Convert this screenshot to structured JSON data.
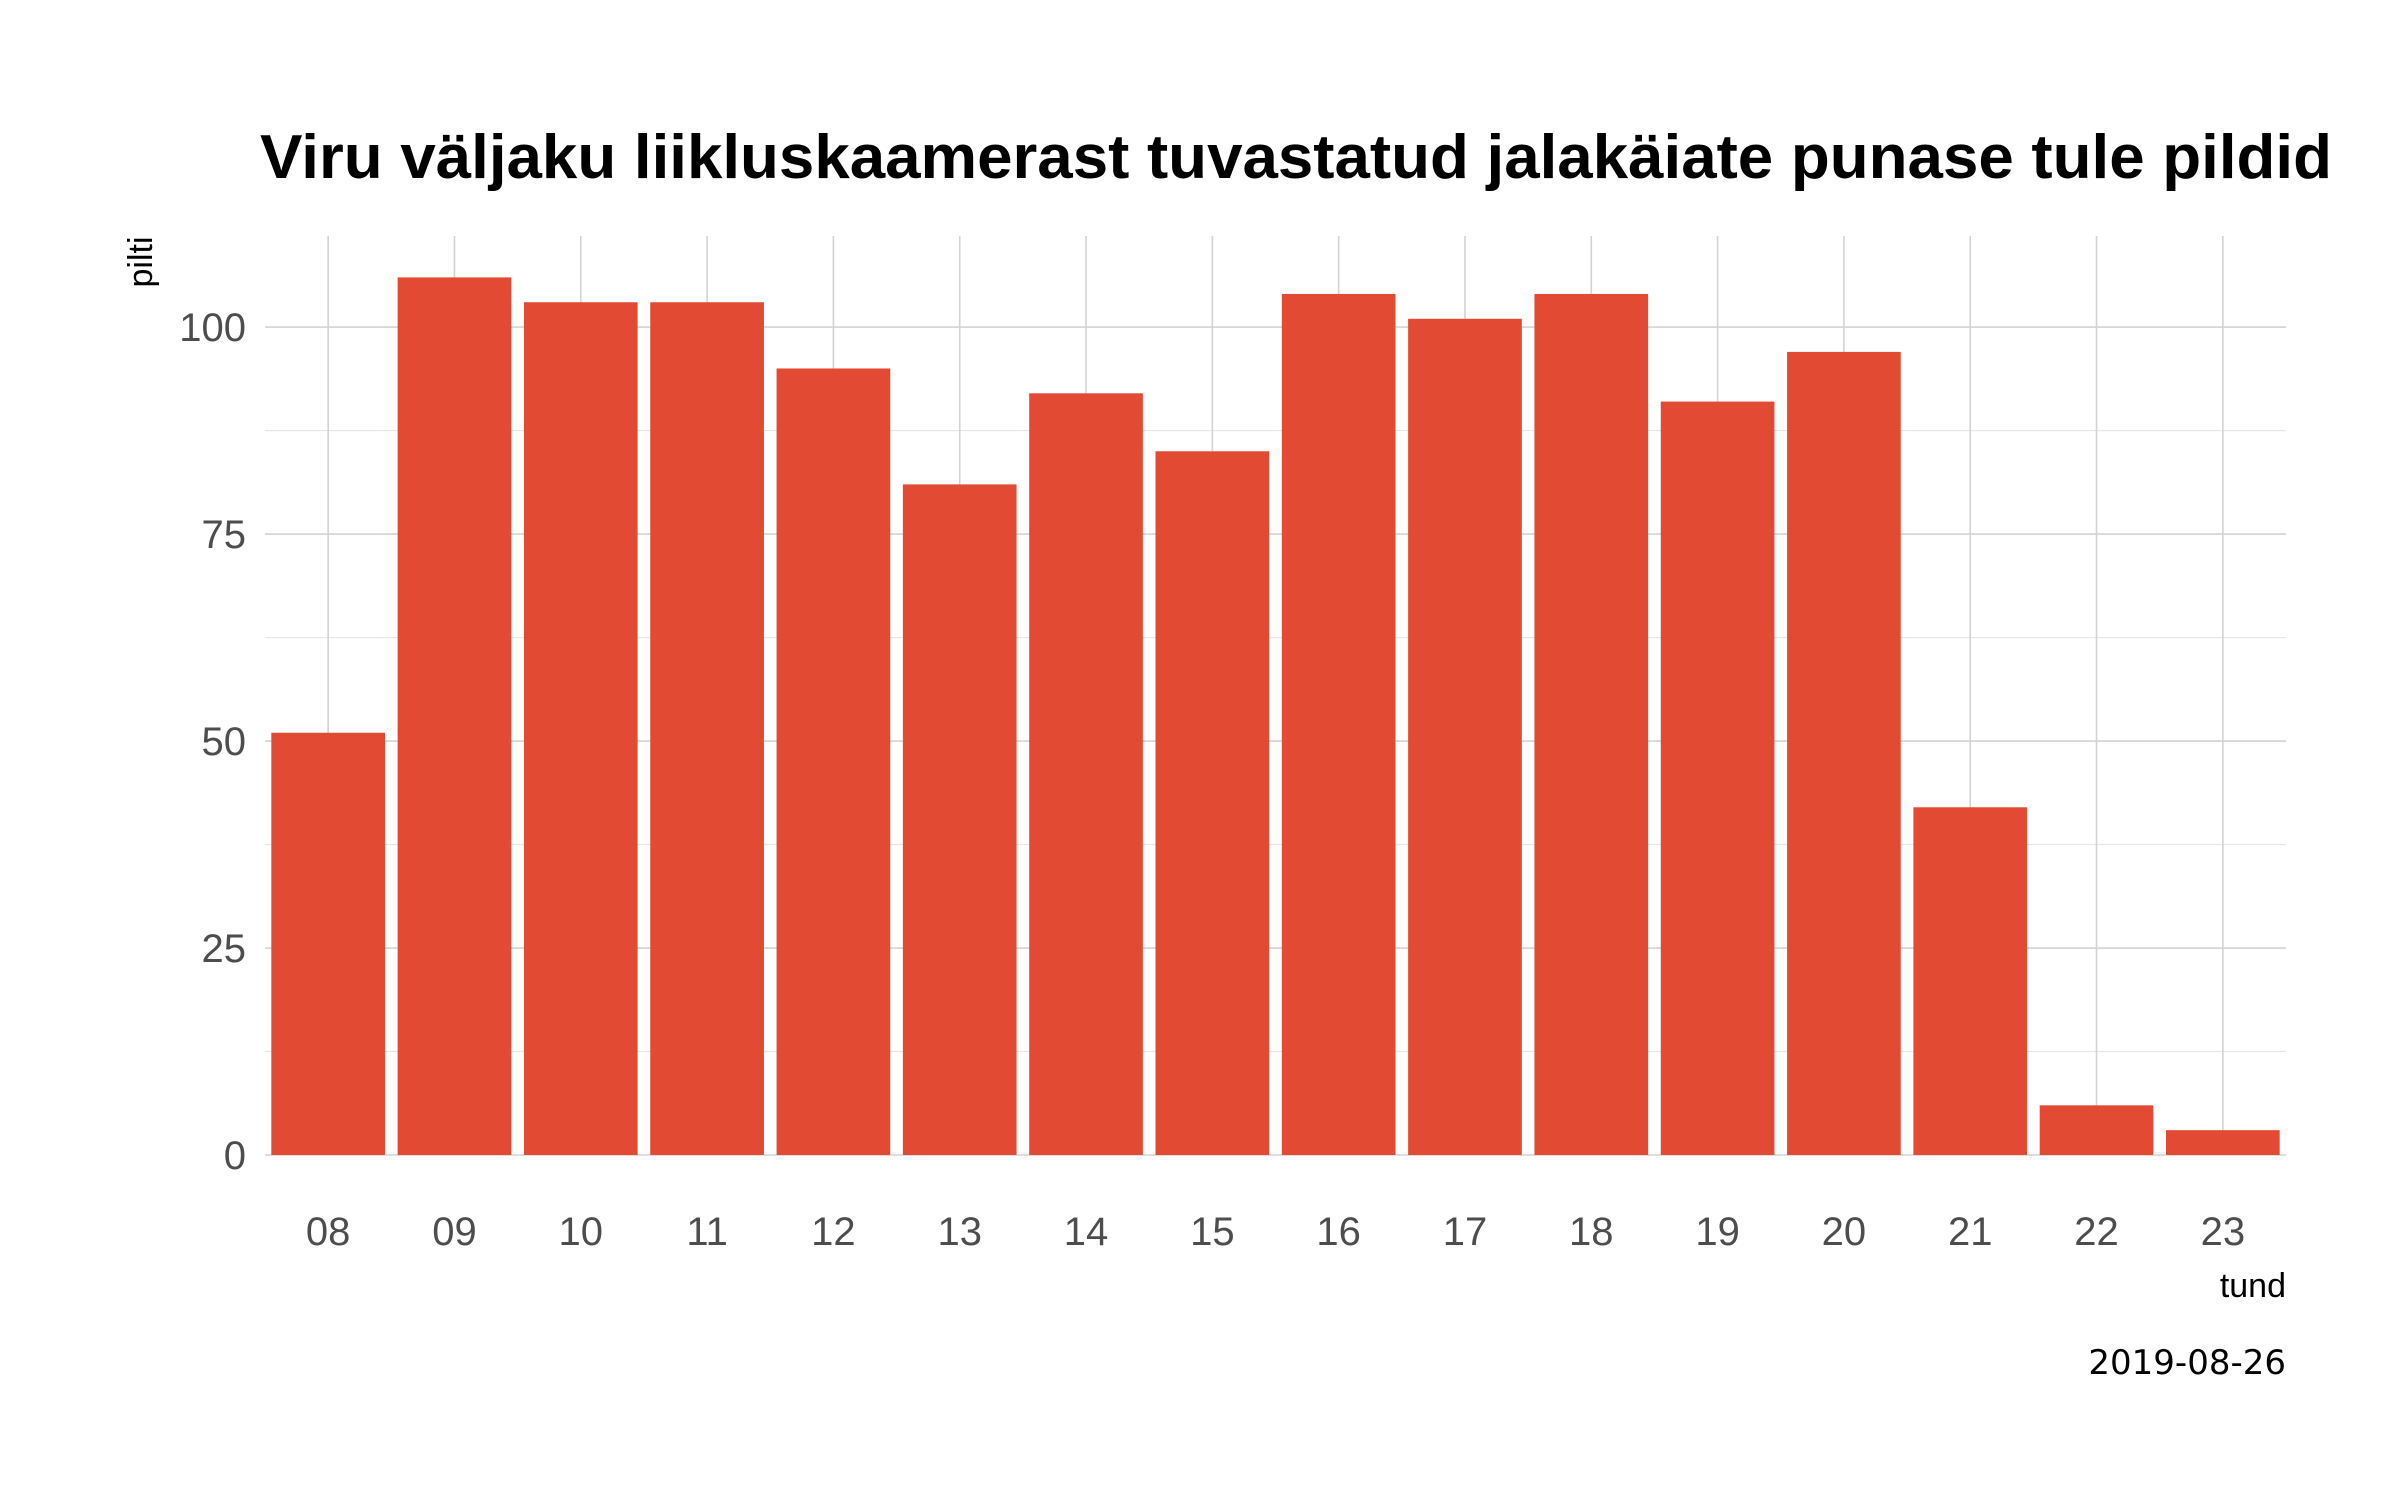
{
  "chart_data": {
    "type": "bar",
    "title": "Viru väljaku liikluskaamerast tuvastatud jalakäiate punase tule pildid",
    "xlabel": "tund",
    "ylabel": "pilti",
    "caption": "2019-08-26",
    "categories": [
      "08",
      "09",
      "10",
      "11",
      "12",
      "13",
      "14",
      "15",
      "16",
      "17",
      "18",
      "19",
      "20",
      "21",
      "22",
      "23"
    ],
    "values": [
      51,
      106,
      103,
      103,
      95,
      81,
      92,
      85,
      104,
      101,
      104,
      91,
      97,
      42,
      6,
      3
    ],
    "ylim": [
      0,
      111
    ],
    "yticks": [
      0,
      25,
      50,
      75,
      100
    ],
    "grid": true,
    "bar_color": "#e34a33"
  }
}
